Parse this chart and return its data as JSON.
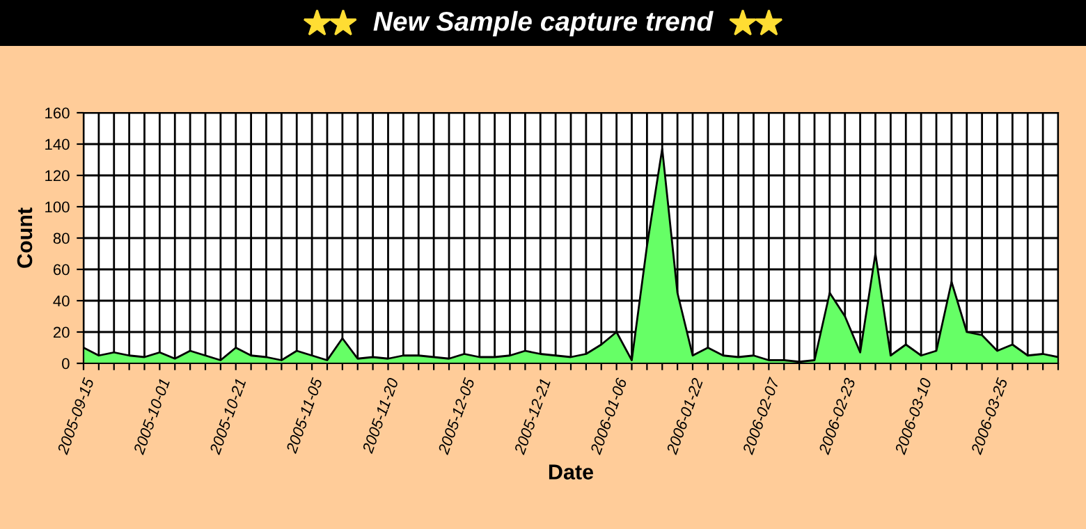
{
  "chart_data": {
    "type": "area",
    "title": "New Sample capture trend",
    "xlabel": "Date",
    "ylabel": "Count",
    "categories": [
      "2005-09-15",
      null,
      null,
      null,
      null,
      "2005-10-01",
      null,
      null,
      null,
      null,
      "2005-10-21",
      null,
      null,
      null,
      null,
      "2005-11-05",
      null,
      null,
      null,
      null,
      "2005-11-20",
      null,
      null,
      null,
      null,
      "2005-12-05",
      null,
      null,
      null,
      null,
      "2005-12-21",
      null,
      null,
      null,
      null,
      "2006-01-06",
      null,
      null,
      null,
      null,
      "2006-01-22",
      null,
      null,
      null,
      null,
      "2006-02-07",
      null,
      null,
      null,
      null,
      "2006-02-23",
      null,
      null,
      null,
      null,
      "2006-03-10",
      null,
      null,
      null,
      null,
      "2006-03-25",
      null,
      null,
      null,
      null
    ],
    "series": [
      {
        "color": "#66ff66",
        "values": [
          10,
          5,
          7,
          5,
          4,
          7,
          3,
          8,
          5,
          2,
          10,
          5,
          4,
          2,
          8,
          5,
          2,
          16,
          3,
          4,
          3,
          5,
          5,
          4,
          3,
          6,
          4,
          4,
          5,
          8,
          6,
          5,
          4,
          6,
          12,
          20,
          2,
          75,
          137,
          45,
          5,
          10,
          5,
          4,
          5,
          2,
          2,
          1,
          2,
          45,
          30,
          7,
          70,
          5,
          12,
          5,
          8,
          52,
          20,
          18,
          8,
          12,
          5,
          6,
          4
        ]
      }
    ],
    "ylim": [
      0,
      160
    ],
    "yticks": [
      0,
      20,
      40,
      60,
      80,
      100,
      120,
      140,
      160
    ],
    "grid": true,
    "legend": false
  }
}
